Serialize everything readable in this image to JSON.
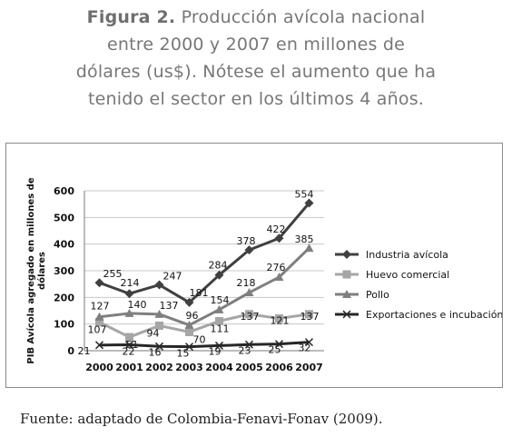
{
  "caption": {
    "label": "Figura 2.",
    "line1": " Producción avícola nacional",
    "line2": "entre 2000 y 2007 en millones de",
    "line3": "dólares (us$). Nótese el aumento que ha",
    "line4": "tenido el sector en los últimos 4 años."
  },
  "source": "Fuente: adaptado de Colombia-Fenavi-Fonav (2009).",
  "chart_data": {
    "type": "line",
    "x": [
      "2000",
      "2001",
      "2002",
      "2003",
      "2004",
      "2005",
      "2006",
      "2007"
    ],
    "ylabel": "PIB Avícola agregado en millones de dólares",
    "ylim": [
      0,
      600
    ],
    "yticks": [
      0,
      100,
      200,
      300,
      400,
      500,
      600
    ],
    "grid": "horizontal",
    "legend_position": "right",
    "series": [
      {
        "name": "Industria avícola",
        "marker": "diamond",
        "color": "#404040",
        "values": [
          255,
          214,
          247,
          181,
          284,
          378,
          422,
          554
        ]
      },
      {
        "name": "Huevo comercial",
        "marker": "square",
        "color": "#a6a6a6",
        "values": [
          107,
          51,
          94,
          70,
          111,
          137,
          121,
          137
        ]
      },
      {
        "name": "Pollo",
        "marker": "triangle",
        "color": "#7f7f7f",
        "values": [
          127,
          140,
          137,
          96,
          154,
          218,
          276,
          385
        ]
      },
      {
        "name": "Exportaciones e incubación",
        "marker": "x",
        "color": "#262626",
        "values": [
          21,
          22,
          16,
          15,
          19,
          23,
          25,
          32
        ]
      }
    ]
  }
}
